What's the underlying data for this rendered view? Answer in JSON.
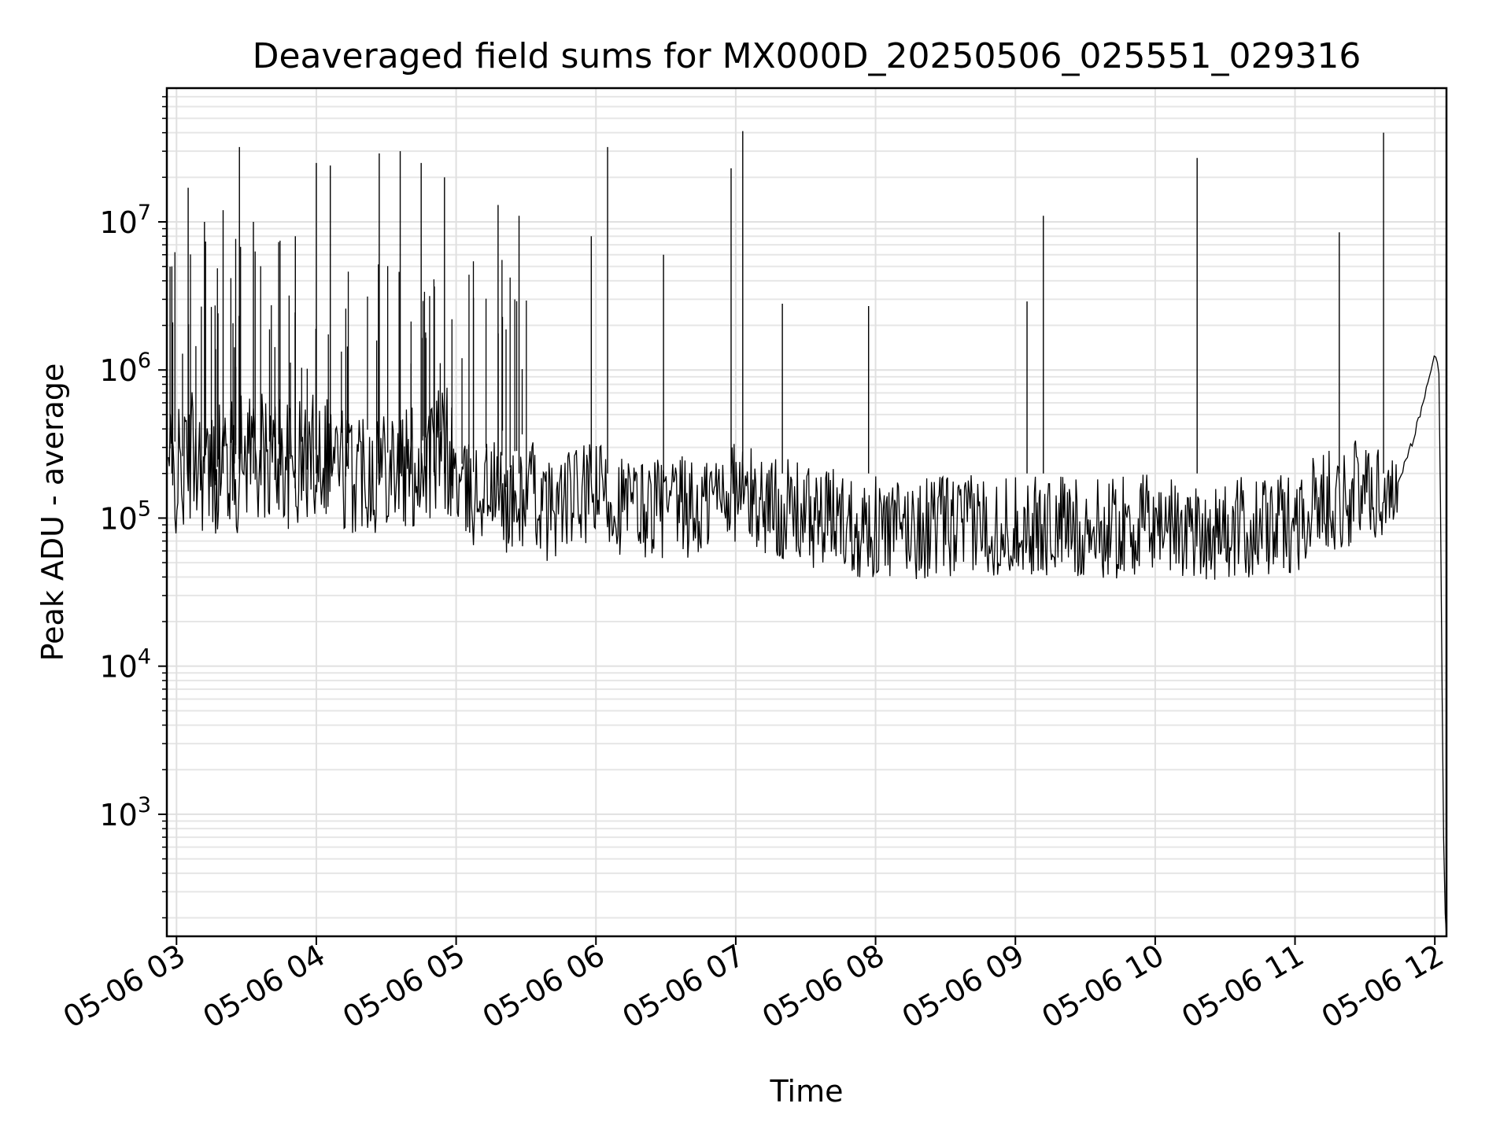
{
  "chart_data": {
    "type": "line",
    "title": "Deaveraged field sums for MX000D_20250506_025551_029316",
    "xlabel": "Time",
    "ylabel": "Peak ADU - average",
    "y_scale": "log",
    "ylim": [
      150,
      80000000
    ],
    "x_range": [
      "2025-05-06 02:55:51",
      "2025-05-06 12:05"
    ],
    "x_ticks": [
      {
        "t": "2025-05-06 03:00",
        "label": "05-06 03"
      },
      {
        "t": "2025-05-06 04:00",
        "label": "05-06 04"
      },
      {
        "t": "2025-05-06 05:00",
        "label": "05-06 05"
      },
      {
        "t": "2025-05-06 06:00",
        "label": "05-06 06"
      },
      {
        "t": "2025-05-06 07:00",
        "label": "05-06 07"
      },
      {
        "t": "2025-05-06 08:00",
        "label": "05-06 08"
      },
      {
        "t": "2025-05-06 09:00",
        "label": "05-06 09"
      },
      {
        "t": "2025-05-06 10:00",
        "label": "05-06 10"
      },
      {
        "t": "2025-05-06 11:00",
        "label": "05-06 11"
      },
      {
        "t": "2025-05-06 12:00",
        "label": "05-06 12"
      }
    ],
    "y_ticks": [
      {
        "value": 1000,
        "base": "10",
        "exp": "3"
      },
      {
        "value": 10000,
        "base": "10",
        "exp": "4"
      },
      {
        "value": 100000,
        "base": "10",
        "exp": "5"
      },
      {
        "value": 1000000,
        "base": "10",
        "exp": "6"
      },
      {
        "value": 10000000,
        "base": "10",
        "exp": "7"
      }
    ],
    "grid": true,
    "line_color": "#000000",
    "series": [
      {
        "x": [
          "2025-05-06 02:56",
          "2025-05-06 03:02",
          "2025-05-06 03:08",
          "2025-05-06 03:14",
          "2025-05-06 03:20",
          "2025-05-06 03:26",
          "2025-05-06 03:32",
          "2025-05-06 03:38",
          "2025-05-06 03:44",
          "2025-05-06 03:50",
          "2025-05-06 03:56",
          "2025-05-06 04:02",
          "2025-05-06 04:08",
          "2025-05-06 04:14",
          "2025-05-06 04:20",
          "2025-05-06 04:26",
          "2025-05-06 04:32",
          "2025-05-06 04:38",
          "2025-05-06 04:44",
          "2025-05-06 04:50",
          "2025-05-06 04:56",
          "2025-05-06 05:02",
          "2025-05-06 05:08",
          "2025-05-06 05:14",
          "2025-05-06 05:20",
          "2025-05-06 05:26",
          "2025-05-06 05:32",
          "2025-05-06 05:38",
          "2025-05-06 05:44",
          "2025-05-06 05:50",
          "2025-05-06 05:56",
          "2025-05-06 06:02",
          "2025-05-06 06:08",
          "2025-05-06 06:14",
          "2025-05-06 06:20",
          "2025-05-06 06:26",
          "2025-05-06 06:32",
          "2025-05-06 06:38",
          "2025-05-06 06:44",
          "2025-05-06 06:50",
          "2025-05-06 06:56",
          "2025-05-06 07:02",
          "2025-05-06 07:08",
          "2025-05-06 07:14",
          "2025-05-06 07:20",
          "2025-05-06 07:26",
          "2025-05-06 07:32",
          "2025-05-06 07:38",
          "2025-05-06 07:44",
          "2025-05-06 07:50",
          "2025-05-06 07:56",
          "2025-05-06 08:02",
          "2025-05-06 08:08",
          "2025-05-06 08:14",
          "2025-05-06 08:20",
          "2025-05-06 08:26",
          "2025-05-06 08:32",
          "2025-05-06 08:38",
          "2025-05-06 08:44",
          "2025-05-06 08:50",
          "2025-05-06 08:56",
          "2025-05-06 09:02",
          "2025-05-06 09:08",
          "2025-05-06 09:14",
          "2025-05-06 09:20",
          "2025-05-06 09:26",
          "2025-05-06 09:32",
          "2025-05-06 09:38",
          "2025-05-06 09:44",
          "2025-05-06 09:50",
          "2025-05-06 09:56",
          "2025-05-06 10:02",
          "2025-05-06 10:08",
          "2025-05-06 10:14",
          "2025-05-06 10:20",
          "2025-05-06 10:26",
          "2025-05-06 10:32",
          "2025-05-06 10:38",
          "2025-05-06 10:44",
          "2025-05-06 10:50",
          "2025-05-06 10:56",
          "2025-05-06 11:02",
          "2025-05-06 11:08",
          "2025-05-06 11:14",
          "2025-05-06 11:20",
          "2025-05-06 11:26",
          "2025-05-06 11:32",
          "2025-05-06 11:38",
          "2025-05-06 11:44",
          "2025-05-06 11:48",
          "2025-05-06 11:52",
          "2025-05-06 11:56",
          "2025-05-06 11:58",
          "2025-05-06 12:00",
          "2025-05-06 12:01",
          "2025-05-06 12:02",
          "2025-05-06 12:03",
          "2025-05-06 12:04",
          "2025-05-06 12:05"
        ],
        "y": [
          220000,
          190000,
          300000,
          180000,
          260000,
          210000,
          340000,
          230000,
          280000,
          200000,
          250000,
          310000,
          270000,
          190000,
          240000,
          220000,
          280000,
          200000,
          230000,
          260000,
          290000,
          150000,
          140000,
          170000,
          130000,
          120000,
          160000,
          110000,
          125000,
          135000,
          140000,
          150000,
          130000,
          120000,
          115000,
          125000,
          110000,
          120000,
          105000,
          140000,
          160000,
          150000,
          130000,
          125000,
          115000,
          110000,
          100000,
          95000,
          105000,
          90000,
          88000,
          85000,
          82000,
          86000,
          84000,
          90000,
          88000,
          85000,
          92000,
          90000,
          87000,
          95000,
          85000,
          88000,
          90000,
          86000,
          84000,
          82000,
          88000,
          85000,
          90000,
          95000,
          88000,
          86000,
          84000,
          82000,
          80000,
          86000,
          84000,
          88000,
          90000,
          100000,
          120000,
          140000,
          130000,
          150000,
          160000,
          140000,
          180000,
          250000,
          400000,
          700000,
          1000000,
          1250000,
          1200000,
          900000,
          10000,
          300,
          150
        ]
      }
    ],
    "spikes": [
      {
        "x": "2025-05-06 02:58",
        "y": 5000000
      },
      {
        "x": "2025-05-06 03:05",
        "y": 17000000
      },
      {
        "x": "2025-05-06 03:12",
        "y": 10000000
      },
      {
        "x": "2025-05-06 03:20",
        "y": 12000000
      },
      {
        "x": "2025-05-06 03:27",
        "y": 32000000
      },
      {
        "x": "2025-05-06 03:33",
        "y": 10000000
      },
      {
        "x": "2025-05-06 03:51",
        "y": 8000000
      },
      {
        "x": "2025-05-06 04:00",
        "y": 25000000
      },
      {
        "x": "2025-05-06 04:06",
        "y": 24000000
      },
      {
        "x": "2025-05-06 04:27",
        "y": 29000000
      },
      {
        "x": "2025-05-06 04:36",
        "y": 30000000
      },
      {
        "x": "2025-05-06 04:45",
        "y": 25000000
      },
      {
        "x": "2025-05-06 04:55",
        "y": 20000000
      },
      {
        "x": "2025-05-06 05:18",
        "y": 13000000
      },
      {
        "x": "2025-05-06 05:27",
        "y": 11000000
      },
      {
        "x": "2025-05-06 05:58",
        "y": 8000000
      },
      {
        "x": "2025-05-06 06:05",
        "y": 32000000
      },
      {
        "x": "2025-05-06 06:29",
        "y": 6000000
      },
      {
        "x": "2025-05-06 06:58",
        "y": 23000000
      },
      {
        "x": "2025-05-06 07:03",
        "y": 41000000
      },
      {
        "x": "2025-05-06 07:20",
        "y": 2800000
      },
      {
        "x": "2025-05-06 07:57",
        "y": 2700000
      },
      {
        "x": "2025-05-06 09:05",
        "y": 2900000
      },
      {
        "x": "2025-05-06 09:12",
        "y": 11000000
      },
      {
        "x": "2025-05-06 10:18",
        "y": 27000000
      },
      {
        "x": "2025-05-06 11:19",
        "y": 8500000
      },
      {
        "x": "2025-05-06 11:38",
        "y": 40000000
      }
    ]
  }
}
